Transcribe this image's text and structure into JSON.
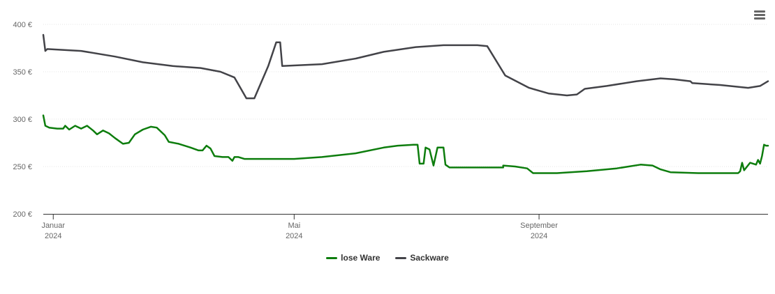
{
  "chart_data": {
    "type": "line",
    "title": "",
    "xlabel": "",
    "ylabel": "",
    "x_ticks": [
      {
        "date": "2024-01-01",
        "line1": "Januar",
        "line2": "2024"
      },
      {
        "date": "2024-05-01",
        "line1": "Mai",
        "line2": "2024"
      },
      {
        "date": "2024-09-01",
        "line1": "September",
        "line2": "2024"
      }
    ],
    "xlim": [
      "2023-12-27",
      "2024-12-25"
    ],
    "ylim": [
      200,
      400
    ],
    "y_ticks": [
      200,
      250,
      300,
      350,
      400
    ],
    "y_tick_labels": [
      "200 €",
      "250 €",
      "300 €",
      "350 €",
      "400 €"
    ],
    "grid": true,
    "legend_position": "bottom-center",
    "series": [
      {
        "name": "lose Ware",
        "color": "#0d7d0d",
        "points": [
          [
            "2023-12-27",
            304
          ],
          [
            "2023-12-28",
            293
          ],
          [
            "2023-12-30",
            291
          ],
          [
            "2024-01-03",
            290
          ],
          [
            "2024-01-06",
            290
          ],
          [
            "2024-01-07",
            293
          ],
          [
            "2024-01-09",
            289
          ],
          [
            "2024-01-12",
            293
          ],
          [
            "2024-01-15",
            290
          ],
          [
            "2024-01-18",
            293
          ],
          [
            "2024-01-21",
            288
          ],
          [
            "2024-01-23",
            284
          ],
          [
            "2024-01-26",
            288
          ],
          [
            "2024-01-29",
            285
          ],
          [
            "2024-02-01",
            280
          ],
          [
            "2024-02-05",
            274
          ],
          [
            "2024-02-08",
            275
          ],
          [
            "2024-02-11",
            284
          ],
          [
            "2024-02-15",
            289
          ],
          [
            "2024-02-19",
            292
          ],
          [
            "2024-02-22",
            291
          ],
          [
            "2024-02-26",
            283
          ],
          [
            "2024-02-28",
            276
          ],
          [
            "2024-03-04",
            274
          ],
          [
            "2024-03-10",
            270
          ],
          [
            "2024-03-14",
            267
          ],
          [
            "2024-03-16",
            267
          ],
          [
            "2024-03-18",
            272
          ],
          [
            "2024-03-20",
            269
          ],
          [
            "2024-03-22",
            261
          ],
          [
            "2024-03-26",
            260
          ],
          [
            "2024-03-29",
            260
          ],
          [
            "2024-03-31",
            256
          ],
          [
            "2024-04-01",
            260
          ],
          [
            "2024-04-03",
            260
          ],
          [
            "2024-04-06",
            258
          ],
          [
            "2024-04-20",
            258
          ],
          [
            "2024-05-01",
            258
          ],
          [
            "2024-05-15",
            260
          ],
          [
            "2024-06-01",
            264
          ],
          [
            "2024-06-15",
            270
          ],
          [
            "2024-06-22",
            272
          ],
          [
            "2024-06-30",
            273
          ],
          [
            "2024-07-02",
            273
          ],
          [
            "2024-07-03",
            253
          ],
          [
            "2024-07-05",
            253
          ],
          [
            "2024-07-06",
            270
          ],
          [
            "2024-07-08",
            268
          ],
          [
            "2024-07-10",
            251
          ],
          [
            "2024-07-12",
            270
          ],
          [
            "2024-07-15",
            270
          ],
          [
            "2024-07-16",
            252
          ],
          [
            "2024-07-18",
            249
          ],
          [
            "2024-08-01",
            249
          ],
          [
            "2024-08-14",
            249
          ],
          [
            "2024-08-14",
            251
          ],
          [
            "2024-08-20",
            250
          ],
          [
            "2024-08-26",
            248
          ],
          [
            "2024-08-29",
            243
          ],
          [
            "2024-09-10",
            243
          ],
          [
            "2024-09-25",
            245
          ],
          [
            "2024-10-10",
            248
          ],
          [
            "2024-10-22",
            252
          ],
          [
            "2024-10-28",
            251
          ],
          [
            "2024-11-01",
            247
          ],
          [
            "2024-11-06",
            244
          ],
          [
            "2024-11-20",
            243
          ],
          [
            "2024-12-01",
            243
          ],
          [
            "2024-12-10",
            243
          ],
          [
            "2024-12-11",
            245
          ],
          [
            "2024-12-12",
            254
          ],
          [
            "2024-12-13",
            246
          ],
          [
            "2024-12-16",
            254
          ],
          [
            "2024-12-19",
            252
          ],
          [
            "2024-12-20",
            257
          ],
          [
            "2024-12-21",
            253
          ],
          [
            "2024-12-22",
            261
          ],
          [
            "2024-12-23",
            273
          ],
          [
            "2024-12-24",
            272
          ],
          [
            "2024-12-25",
            272
          ]
        ]
      },
      {
        "name": "Sackware",
        "color": "#434348",
        "points": [
          [
            "2023-12-27",
            389
          ],
          [
            "2023-12-28",
            372
          ],
          [
            "2023-12-29",
            374
          ],
          [
            "2024-01-15",
            372
          ],
          [
            "2024-02-01",
            366
          ],
          [
            "2024-02-15",
            360
          ],
          [
            "2024-03-01",
            356
          ],
          [
            "2024-03-15",
            354
          ],
          [
            "2024-03-25",
            350
          ],
          [
            "2024-04-01",
            344
          ],
          [
            "2024-04-07",
            322
          ],
          [
            "2024-04-11",
            322
          ],
          [
            "2024-04-18",
            356
          ],
          [
            "2024-04-22",
            381
          ],
          [
            "2024-04-24",
            381
          ],
          [
            "2024-04-25",
            356
          ],
          [
            "2024-05-15",
            358
          ],
          [
            "2024-06-01",
            364
          ],
          [
            "2024-06-15",
            371
          ],
          [
            "2024-07-01",
            376
          ],
          [
            "2024-07-15",
            378
          ],
          [
            "2024-08-01",
            378
          ],
          [
            "2024-08-06",
            377
          ],
          [
            "2024-08-15",
            346
          ],
          [
            "2024-08-27",
            333
          ],
          [
            "2024-09-06",
            327
          ],
          [
            "2024-09-15",
            325
          ],
          [
            "2024-09-20",
            326
          ],
          [
            "2024-09-24",
            332
          ],
          [
            "2024-10-05",
            335
          ],
          [
            "2024-10-20",
            340
          ],
          [
            "2024-11-01",
            343
          ],
          [
            "2024-11-08",
            342
          ],
          [
            "2024-11-16",
            340
          ],
          [
            "2024-11-17",
            338
          ],
          [
            "2024-12-01",
            336
          ],
          [
            "2024-12-15",
            333
          ],
          [
            "2024-12-21",
            335
          ],
          [
            "2024-12-25",
            340
          ]
        ]
      }
    ]
  }
}
